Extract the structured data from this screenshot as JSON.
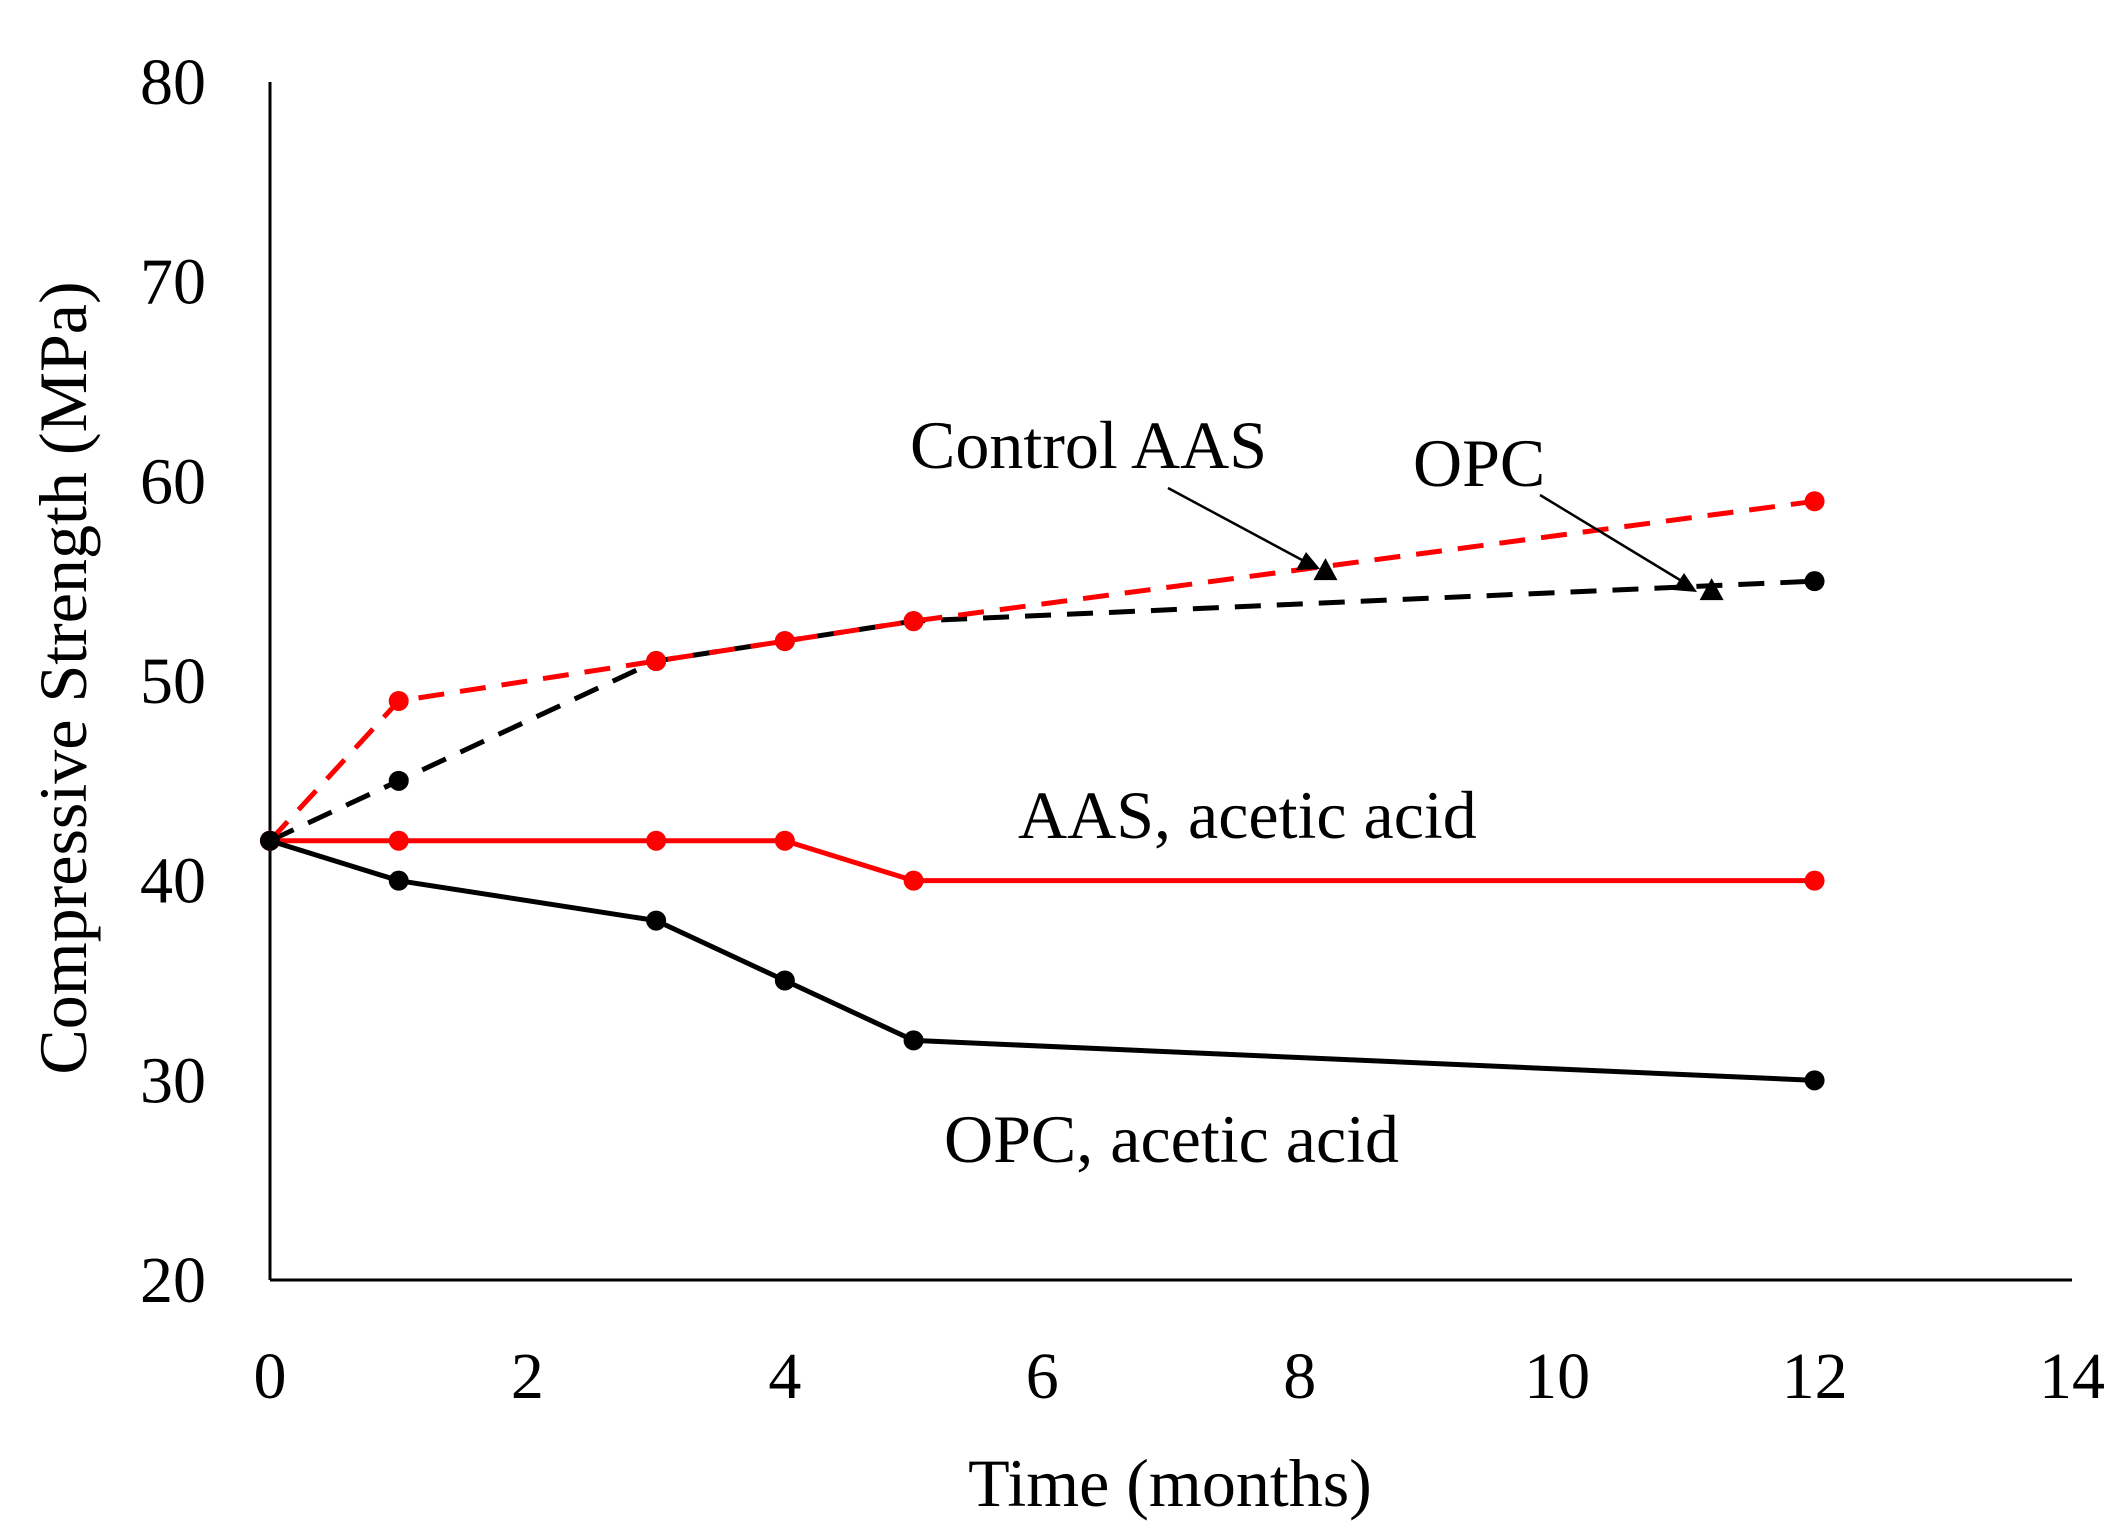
{
  "chart_data": {
    "type": "line",
    "title": "",
    "xlabel": "Time (months)",
    "ylabel": "Compressive Strength (MPa)",
    "xlim": [
      0,
      14
    ],
    "ylim": [
      20,
      80
    ],
    "xticks": [
      0,
      2,
      4,
      6,
      8,
      10,
      12,
      14
    ],
    "yticks": [
      20,
      30,
      40,
      50,
      60,
      70,
      80
    ],
    "grid": false,
    "legend": "none",
    "series": [
      {
        "key": "opc-control",
        "color": "#000000",
        "dash": true,
        "marker": "circle",
        "x": [
          0,
          1,
          3,
          4,
          5,
          12
        ],
        "y": [
          42,
          45,
          51,
          52,
          53,
          55
        ]
      },
      {
        "key": "aas-control",
        "color": "#ff0000",
        "dash": true,
        "marker": "circle",
        "x": [
          0,
          1,
          3,
          4,
          5,
          12
        ],
        "y": [
          42,
          49,
          51,
          52,
          53,
          59
        ]
      },
      {
        "key": "aas-acetic",
        "color": "#ff0000",
        "dash": false,
        "marker": "circle",
        "x": [
          0,
          1,
          3,
          4,
          5,
          12
        ],
        "y": [
          42,
          42,
          42,
          42,
          40,
          40
        ]
      },
      {
        "key": "opc-acetic",
        "color": "#000000",
        "dash": false,
        "marker": "circle",
        "x": [
          0,
          1,
          3,
          4,
          5,
          12
        ],
        "y": [
          42,
          40,
          38,
          35,
          32,
          30
        ]
      }
    ],
    "annotations": [
      {
        "key": "control-aas",
        "text": "Control AAS",
        "arrow_to": [
          8.2,
          55.5
        ]
      },
      {
        "key": "opc",
        "text": "OPC",
        "arrow_to": [
          11.2,
          54.5
        ]
      },
      {
        "key": "aas-acetic-acid",
        "text": "AAS, acetic acid"
      },
      {
        "key": "opc-acetic-acid",
        "text": "OPC, acetic acid"
      }
    ]
  }
}
